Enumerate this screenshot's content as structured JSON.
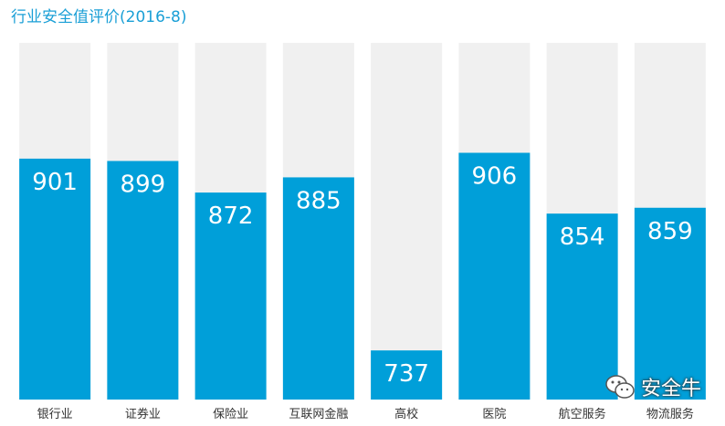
{
  "chart_data": {
    "type": "bar",
    "title": "行业安全值评价(2016-8)",
    "categories": [
      "银行业",
      "证券业",
      "保险业",
      "互联网金融",
      "高校",
      "医院",
      "航空服务",
      "物流服务"
    ],
    "values": [
      901,
      899,
      872,
      885,
      737,
      906,
      854,
      859
    ],
    "ylim": [
      695,
      1000
    ],
    "xlabel": "",
    "ylabel": "",
    "grid": false,
    "colors": {
      "bar": "#009fd9",
      "track": "#f0f0f0",
      "value_text": "#ffffff",
      "title": "#1a9fd6"
    }
  },
  "watermark": {
    "text": "安全牛",
    "icon": "wechat-icon"
  }
}
